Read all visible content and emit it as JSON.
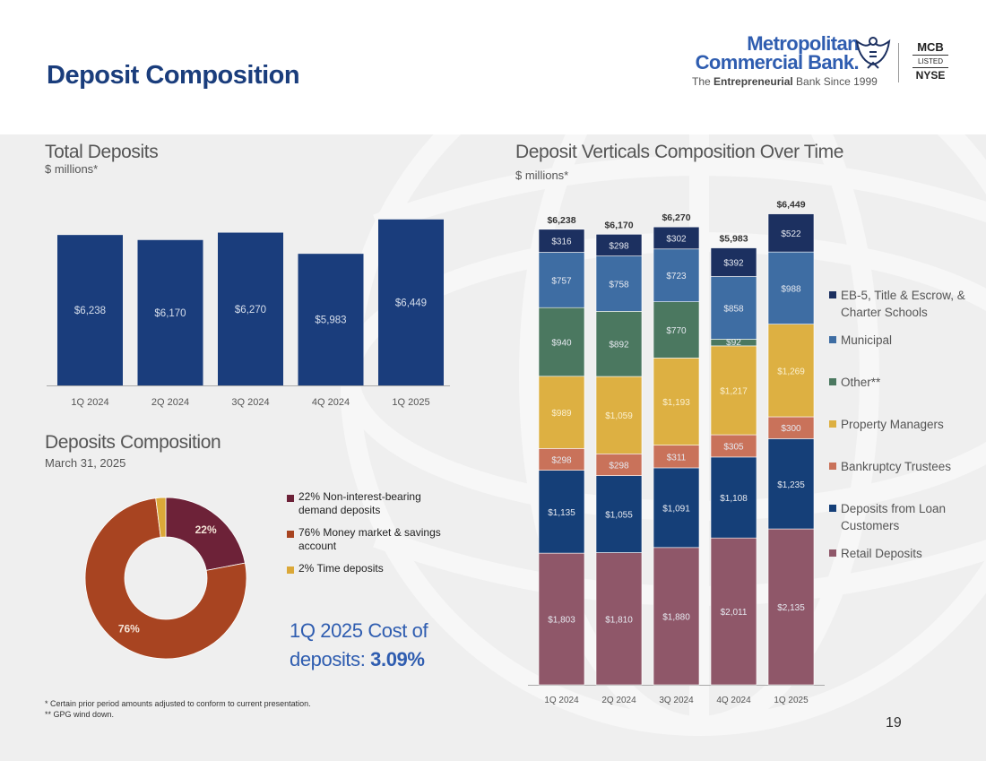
{
  "title": "Deposit Composition",
  "logo": {
    "name_line1": "Metropolitan",
    "name_line2": "Commercial Bank.",
    "tagline_prefix": "The ",
    "tagline_bold": "Entrepreneurial",
    "tagline_suffix": " Bank Since 1999",
    "ticker": "MCB",
    "listed": "LISTED",
    "exchange": "NYSE"
  },
  "total_deposits": {
    "title": "Total Deposits",
    "subtitle": "$ millions*"
  },
  "deposits_composition": {
    "title": "Deposits Composition",
    "subtitle": "March 31, 2025"
  },
  "verticals": {
    "title": "Deposit Verticals Composition Over Time",
    "subtitle": "$ millions*"
  },
  "cost_note": {
    "line1": "1Q 2025 Cost of",
    "line2_prefix": "deposits: ",
    "line2_value": "3.09%"
  },
  "footnotes": [
    "*   Certain prior period amounts adjusted to conform to current presentation.",
    "**  GPG wind down."
  ],
  "page_number": "19",
  "colors": {
    "navy": "#1a3d7c",
    "retail": "#8f5769",
    "loan": "#153f78",
    "bankruptcy": "#c9725a",
    "property": "#ddb042",
    "other": "#4b7860",
    "municipal": "#3e6da3",
    "eb5": "#1c3060",
    "donut_demand": "#6d2238",
    "donut_mm": "#a84421",
    "donut_time": "#dba838"
  },
  "chart_data": [
    {
      "id": "total-deposits",
      "type": "bar",
      "title": "Total Deposits",
      "ylabel": "$ millions*",
      "categories": [
        "1Q 2024",
        "2Q 2024",
        "3Q 2024",
        "4Q 2024",
        "1Q 2025"
      ],
      "values": [
        6238,
        6170,
        6270,
        5983,
        6449
      ],
      "labels": [
        "$6,238",
        "$6,170",
        "$6,270",
        "$5,983",
        "$6,449"
      ],
      "ylim": [
        4200,
        6750
      ],
      "grid": false
    },
    {
      "id": "deposits-composition",
      "type": "pie",
      "title": "Deposits Composition",
      "subtitle": "March 31, 2025",
      "slices": [
        {
          "name": "Non-interest-bearing demand deposits",
          "value": 22,
          "legend": "22% Non-interest-bearing demand deposits",
          "label": "22%",
          "color": "#6d2238"
        },
        {
          "name": "Money market & savings account",
          "value": 76,
          "legend": "76% Money market & savings account",
          "label": "76%",
          "color": "#a84421"
        },
        {
          "name": "Time deposits",
          "value": 2,
          "legend": "2% Time deposits",
          "label": "",
          "color": "#dba838"
        }
      ]
    },
    {
      "id": "deposit-verticals",
      "type": "bar",
      "stacked": true,
      "title": "Deposit Verticals Composition Over Time",
      "ylabel": "$ millions*",
      "categories": [
        "1Q 2024",
        "2Q 2024",
        "3Q 2024",
        "4Q 2024",
        "1Q 2025"
      ],
      "totals": [
        6238,
        6170,
        6270,
        5983,
        6449
      ],
      "total_labels": [
        "$6,238",
        "$6,170",
        "$6,270",
        "$5,983",
        "$6,449"
      ],
      "ylim": [
        0,
        6800
      ],
      "series": [
        {
          "key": "retail",
          "name": "Retail Deposits",
          "color": "#8f5769",
          "values": [
            1803,
            1810,
            1880,
            2011,
            2135
          ],
          "labels": [
            "$1,803",
            "$1,810",
            "$1,880",
            "$2,011",
            "$2,135"
          ]
        },
        {
          "key": "loan",
          "name": "Deposits from Loan Customers",
          "color": "#153f78",
          "values": [
            1135,
            1055,
            1091,
            1108,
            1235
          ],
          "labels": [
            "$1,135",
            "$1,055",
            "$1,091",
            "$1,108",
            "$1,235"
          ]
        },
        {
          "key": "bankruptcy",
          "name": "Bankruptcy Trustees",
          "color": "#c9725a",
          "values": [
            298,
            298,
            311,
            305,
            300
          ],
          "labels": [
            "$298",
            "$298",
            "$311",
            "$305",
            "$300"
          ]
        },
        {
          "key": "property",
          "name": "Property Managers",
          "color": "#ddb042",
          "values": [
            989,
            1059,
            1193,
            1217,
            1269
          ],
          "labels": [
            "$989",
            "$1,059",
            "$1,193",
            "$1,217",
            "$1,269"
          ]
        },
        {
          "key": "other",
          "name": "Other**",
          "color": "#4b7860",
          "values": [
            940,
            892,
            770,
            92,
            0
          ],
          "labels": [
            "$940",
            "$892",
            "$770",
            "$92",
            ""
          ]
        },
        {
          "key": "municipal",
          "name": "Municipal",
          "color": "#3e6da3",
          "values": [
            757,
            758,
            723,
            858,
            988
          ],
          "labels": [
            "$757",
            "$758",
            "$723",
            "$858",
            "$988"
          ]
        },
        {
          "key": "eb5",
          "name": "EB-5, Title & Escrow, & Charter Schools",
          "color": "#1c3060",
          "values": [
            316,
            298,
            302,
            392,
            522
          ],
          "labels": [
            "$316",
            "$298",
            "$302",
            "$392",
            "$522"
          ]
        }
      ],
      "legend_order": [
        "eb5",
        "municipal",
        "other",
        "property",
        "bankruptcy",
        "loan",
        "retail"
      ]
    }
  ]
}
